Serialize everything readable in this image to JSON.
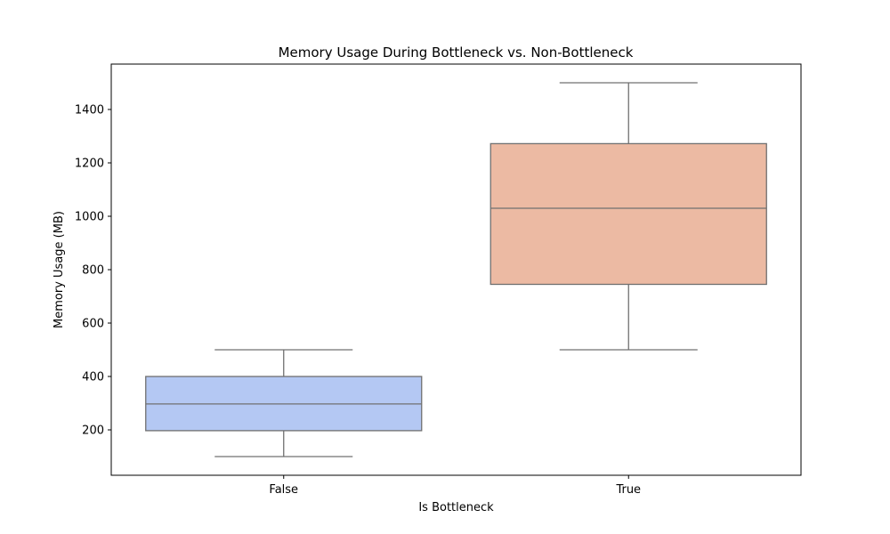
{
  "chart_data": {
    "type": "box",
    "title": "Memory Usage During Bottleneck vs. Non-Bottleneck",
    "xlabel": "Is Bottleneck",
    "ylabel": "Memory Usage (MB)",
    "categories": [
      "False",
      "True"
    ],
    "ylim": [
      30,
      1570
    ],
    "yticks": [
      200,
      400,
      600,
      800,
      1000,
      1200,
      1400
    ],
    "grid": false,
    "boxes": [
      {
        "category": "False",
        "whisker_low": 100,
        "q1": 197,
        "median": 297,
        "q3": 400,
        "whisker_high": 500,
        "color": "#b4c8f3"
      },
      {
        "category": "True",
        "whisker_low": 500,
        "q1": 745,
        "median": 1030,
        "q3": 1272,
        "whisker_high": 1500,
        "color": "#ecbaa3"
      }
    ],
    "line_color": "#707070"
  }
}
